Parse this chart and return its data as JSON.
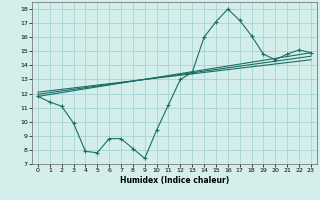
{
  "xlabel": "Humidex (Indice chaleur)",
  "background_color": "#d4eeec",
  "line_color": "#1a6e65",
  "xlim": [
    -0.5,
    23.5
  ],
  "ylim": [
    7,
    18.5
  ],
  "xticks": [
    0,
    1,
    2,
    3,
    4,
    5,
    6,
    7,
    8,
    9,
    10,
    11,
    12,
    13,
    14,
    15,
    16,
    17,
    18,
    19,
    20,
    21,
    22,
    23
  ],
  "yticks": [
    7,
    8,
    9,
    10,
    11,
    12,
    13,
    14,
    15,
    16,
    17,
    18
  ],
  "main_line": {
    "x": [
      0,
      1,
      2,
      3,
      4,
      5,
      6,
      7,
      8,
      9,
      10,
      11,
      12,
      13,
      14,
      15,
      16,
      17,
      18,
      19,
      20,
      21,
      22,
      23
    ],
    "y": [
      11.8,
      11.4,
      11.1,
      9.9,
      7.9,
      7.8,
      8.8,
      8.8,
      8.1,
      7.4,
      9.4,
      11.2,
      13.0,
      13.5,
      16.0,
      17.1,
      18.0,
      17.2,
      16.1,
      14.8,
      14.4,
      14.8,
      15.1,
      14.9
    ]
  },
  "trend_lines": [
    {
      "x": [
        0,
        23
      ],
      "y": [
        11.8,
        14.9
      ]
    },
    {
      "x": [
        0,
        23
      ],
      "y": [
        11.95,
        14.65
      ]
    },
    {
      "x": [
        0,
        23
      ],
      "y": [
        12.1,
        14.4
      ]
    }
  ]
}
